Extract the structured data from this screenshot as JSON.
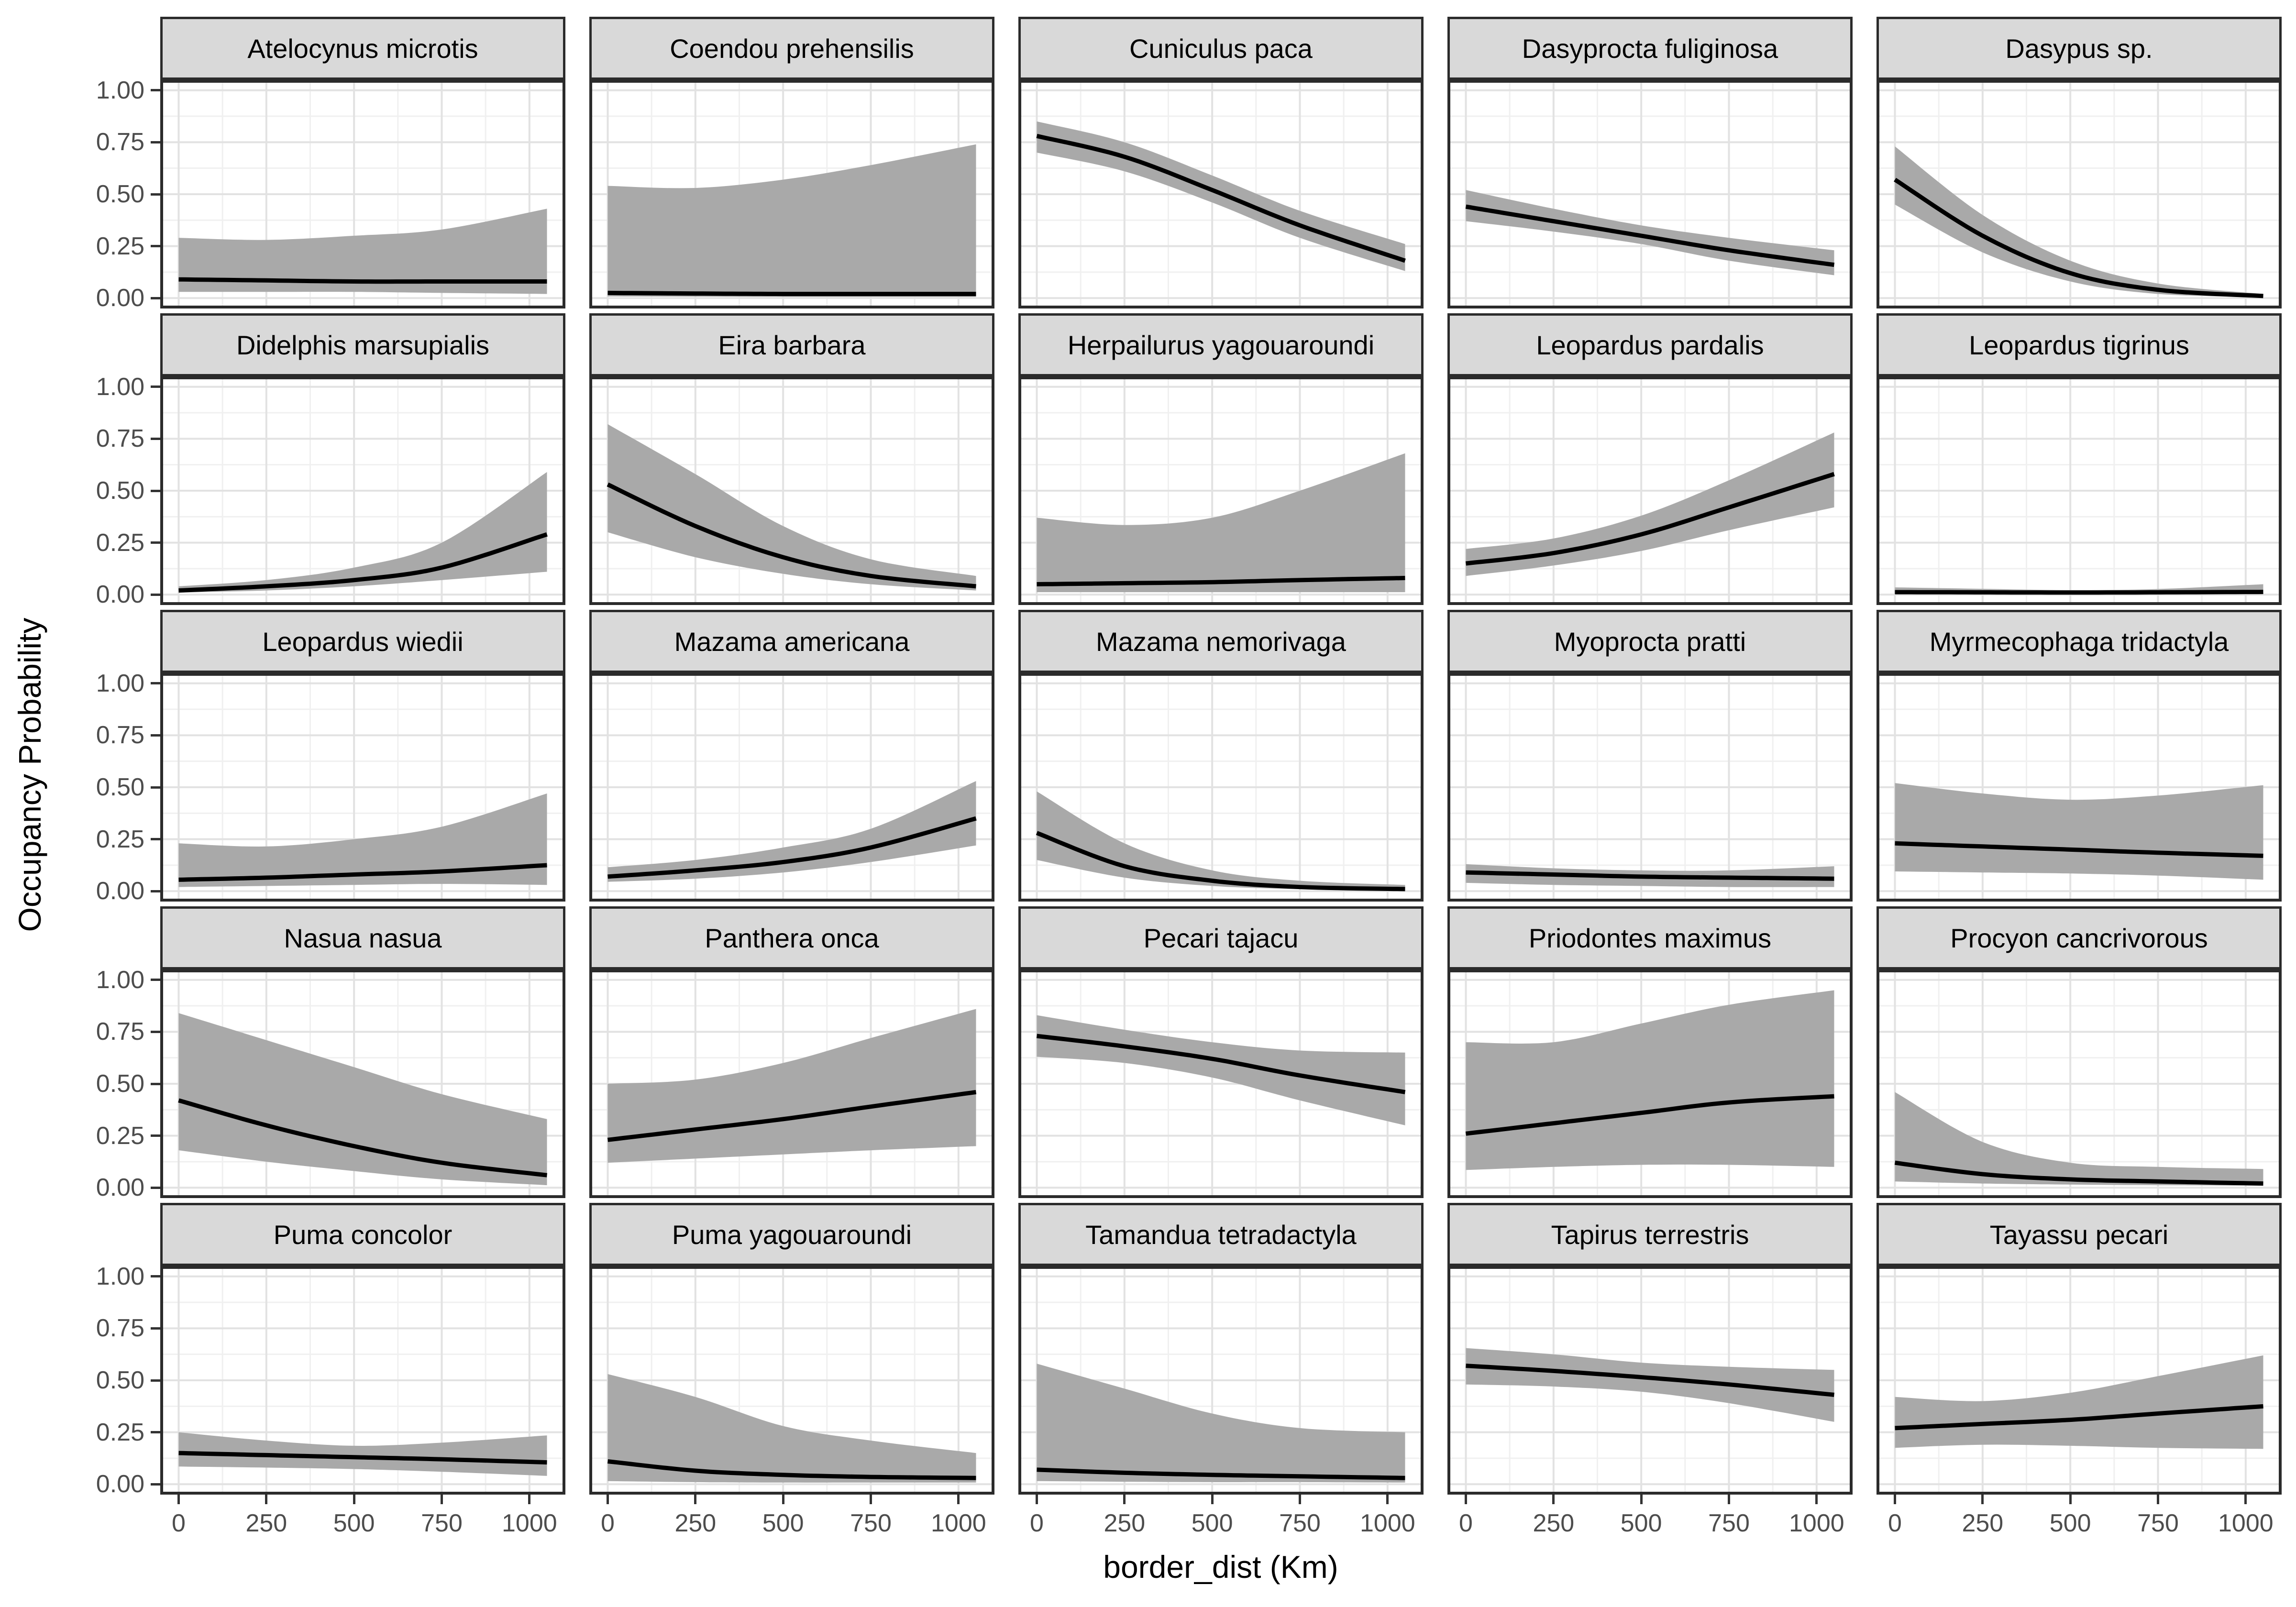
{
  "chart_data": {
    "type": "area",
    "description": "Faceted ribbon plot (5x5) of species occupancy probability vs distance to border; each facet shows a black mean line with a gray credible-interval ribbon.",
    "xlabel": "border_dist (Km)",
    "ylabel": "Occupancy Probability",
    "xlim": [
      0,
      1050
    ],
    "ylim": [
      0,
      1
    ],
    "x_ticks": [
      0,
      250,
      500,
      750,
      1000
    ],
    "x_tick_labels": [
      "0",
      "250",
      "500",
      "750",
      "1000"
    ],
    "y_ticks": [
      1.0,
      0.75,
      0.5,
      0.25,
      0.0
    ],
    "y_tick_labels": [
      "1.00",
      "0.75",
      "0.50",
      "0.25",
      "0.00"
    ],
    "x_minor_ticks": [
      125,
      375,
      625,
      875
    ],
    "y_minor_ticks": [
      0.125,
      0.375,
      0.625,
      0.875
    ],
    "grid": true,
    "legend": "none",
    "x_control": [
      0,
      250,
      500,
      750,
      1050
    ],
    "facets": [
      {
        "title": "Atelocynus microtis",
        "line": [
          0.09,
          0.085,
          0.08,
          0.08,
          0.08
        ],
        "lower": [
          0.03,
          0.03,
          0.03,
          0.025,
          0.02
        ],
        "upper": [
          0.29,
          0.28,
          0.3,
          0.33,
          0.43
        ]
      },
      {
        "title": "Coendou prehensilis",
        "line": [
          0.025,
          0.022,
          0.02,
          0.02,
          0.02
        ],
        "lower": [
          0.008,
          0.007,
          0.006,
          0.006,
          0.006
        ],
        "upper": [
          0.54,
          0.53,
          0.57,
          0.64,
          0.74
        ]
      },
      {
        "title": "Cuniculus paca",
        "line": [
          0.78,
          0.68,
          0.52,
          0.35,
          0.18
        ],
        "lower": [
          0.7,
          0.61,
          0.46,
          0.29,
          0.13
        ],
        "upper": [
          0.85,
          0.75,
          0.59,
          0.42,
          0.26
        ]
      },
      {
        "title": "Dasyprocta fuliginosa",
        "line": [
          0.44,
          0.37,
          0.3,
          0.23,
          0.16
        ],
        "lower": [
          0.37,
          0.32,
          0.26,
          0.18,
          0.11
        ],
        "upper": [
          0.52,
          0.43,
          0.35,
          0.29,
          0.23
        ]
      },
      {
        "title": "Dasypus sp.",
        "line": [
          0.57,
          0.3,
          0.12,
          0.04,
          0.01
        ],
        "lower": [
          0.45,
          0.22,
          0.08,
          0.02,
          0.005
        ],
        "upper": [
          0.73,
          0.4,
          0.18,
          0.07,
          0.02
        ]
      },
      {
        "title": "Didelphis marsupialis",
        "line": [
          0.02,
          0.04,
          0.07,
          0.13,
          0.29
        ],
        "lower": [
          0.01,
          0.02,
          0.04,
          0.07,
          0.11
        ],
        "upper": [
          0.04,
          0.07,
          0.13,
          0.25,
          0.59
        ]
      },
      {
        "title": "Eira barbara",
        "line": [
          0.53,
          0.33,
          0.18,
          0.09,
          0.04
        ],
        "lower": [
          0.3,
          0.18,
          0.1,
          0.05,
          0.02
        ],
        "upper": [
          0.82,
          0.58,
          0.33,
          0.17,
          0.09
        ]
      },
      {
        "title": "Herpailurus yagouaroundi",
        "line": [
          0.05,
          0.055,
          0.06,
          0.07,
          0.08
        ],
        "lower": [
          0.012,
          0.012,
          0.012,
          0.012,
          0.012
        ],
        "upper": [
          0.37,
          0.335,
          0.37,
          0.5,
          0.68
        ]
      },
      {
        "title": "Leopardus pardalis",
        "line": [
          0.15,
          0.2,
          0.29,
          0.42,
          0.58
        ],
        "lower": [
          0.09,
          0.14,
          0.21,
          0.31,
          0.42
        ],
        "upper": [
          0.22,
          0.27,
          0.38,
          0.55,
          0.78
        ]
      },
      {
        "title": "Leopardus tigrinus",
        "line": [
          0.012,
          0.011,
          0.01,
          0.011,
          0.013
        ],
        "lower": [
          0.004,
          0.004,
          0.004,
          0.004,
          0.004
        ],
        "upper": [
          0.035,
          0.028,
          0.022,
          0.027,
          0.05
        ]
      },
      {
        "title": "Leopardus wiedii",
        "line": [
          0.055,
          0.065,
          0.08,
          0.095,
          0.125
        ],
        "lower": [
          0.02,
          0.025,
          0.03,
          0.035,
          0.03
        ],
        "upper": [
          0.23,
          0.215,
          0.25,
          0.31,
          0.47
        ]
      },
      {
        "title": "Mazama americana",
        "line": [
          0.07,
          0.1,
          0.14,
          0.21,
          0.35
        ],
        "lower": [
          0.045,
          0.06,
          0.09,
          0.14,
          0.22
        ],
        "upper": [
          0.115,
          0.15,
          0.21,
          0.3,
          0.53
        ]
      },
      {
        "title": "Mazama nemorivaga",
        "line": [
          0.28,
          0.12,
          0.05,
          0.02,
          0.01
        ],
        "lower": [
          0.15,
          0.065,
          0.025,
          0.01,
          0.005
        ],
        "upper": [
          0.48,
          0.23,
          0.1,
          0.05,
          0.03
        ]
      },
      {
        "title": "Myoprocta pratti",
        "line": [
          0.09,
          0.08,
          0.07,
          0.065,
          0.06
        ],
        "lower": [
          0.04,
          0.03,
          0.025,
          0.02,
          0.02
        ],
        "upper": [
          0.13,
          0.11,
          0.1,
          0.1,
          0.12
        ]
      },
      {
        "title": "Myrmecophaga tridactyla",
        "line": [
          0.23,
          0.215,
          0.2,
          0.185,
          0.17
        ],
        "lower": [
          0.095,
          0.09,
          0.085,
          0.075,
          0.055
        ],
        "upper": [
          0.52,
          0.47,
          0.44,
          0.46,
          0.51
        ]
      },
      {
        "title": "Nasua nasua",
        "line": [
          0.42,
          0.3,
          0.2,
          0.12,
          0.06
        ],
        "lower": [
          0.18,
          0.125,
          0.08,
          0.04,
          0.012
        ],
        "upper": [
          0.84,
          0.71,
          0.58,
          0.45,
          0.33
        ]
      },
      {
        "title": "Panthera onca",
        "line": [
          0.23,
          0.28,
          0.33,
          0.39,
          0.46
        ],
        "lower": [
          0.12,
          0.14,
          0.16,
          0.18,
          0.2
        ],
        "upper": [
          0.5,
          0.52,
          0.6,
          0.72,
          0.86
        ]
      },
      {
        "title": "Pecari tajacu",
        "line": [
          0.73,
          0.68,
          0.62,
          0.54,
          0.46
        ],
        "lower": [
          0.63,
          0.6,
          0.53,
          0.42,
          0.3
        ],
        "upper": [
          0.83,
          0.76,
          0.7,
          0.66,
          0.65
        ]
      },
      {
        "title": "Priodontes maximus",
        "line": [
          0.26,
          0.31,
          0.36,
          0.41,
          0.44
        ],
        "lower": [
          0.085,
          0.1,
          0.11,
          0.11,
          0.1
        ],
        "upper": [
          0.7,
          0.7,
          0.79,
          0.88,
          0.95
        ]
      },
      {
        "title": "Procyon cancrivorous",
        "line": [
          0.12,
          0.065,
          0.04,
          0.03,
          0.02
        ],
        "lower": [
          0.03,
          0.02,
          0.015,
          0.012,
          0.01
        ],
        "upper": [
          0.46,
          0.22,
          0.12,
          0.1,
          0.09
        ]
      },
      {
        "title": "Puma concolor",
        "line": [
          0.15,
          0.14,
          0.13,
          0.12,
          0.105
        ],
        "lower": [
          0.085,
          0.08,
          0.073,
          0.06,
          0.04
        ],
        "upper": [
          0.25,
          0.21,
          0.185,
          0.2,
          0.235
        ]
      },
      {
        "title": "Puma yagouaroundi",
        "line": [
          0.11,
          0.065,
          0.045,
          0.035,
          0.03
        ],
        "lower": [
          0.015,
          0.01,
          0.008,
          0.008,
          0.008
        ],
        "upper": [
          0.53,
          0.42,
          0.28,
          0.21,
          0.15
        ]
      },
      {
        "title": "Tamandua tetradactyla",
        "line": [
          0.07,
          0.055,
          0.045,
          0.038,
          0.03
        ],
        "lower": [
          0.015,
          0.012,
          0.01,
          0.01,
          0.008
        ],
        "upper": [
          0.58,
          0.46,
          0.34,
          0.27,
          0.25
        ]
      },
      {
        "title": "Tapirus terrestris",
        "line": [
          0.57,
          0.545,
          0.515,
          0.48,
          0.43
        ],
        "lower": [
          0.48,
          0.47,
          0.445,
          0.39,
          0.3
        ],
        "upper": [
          0.655,
          0.625,
          0.585,
          0.565,
          0.55
        ]
      },
      {
        "title": "Tayassu pecari",
        "line": [
          0.27,
          0.29,
          0.31,
          0.34,
          0.375
        ],
        "lower": [
          0.175,
          0.19,
          0.185,
          0.175,
          0.17
        ],
        "upper": [
          0.42,
          0.4,
          0.44,
          0.52,
          0.62
        ]
      }
    ],
    "colors": {
      "ribbon": "#a9a9a9",
      "line": "#000000",
      "strip_bg": "#d9d9d9",
      "panel_border": "#2b2b2b",
      "grid_major": "#e2e2e2",
      "grid_minor": "#f0f0f0",
      "tick_text": "#4d4d4d"
    }
  }
}
